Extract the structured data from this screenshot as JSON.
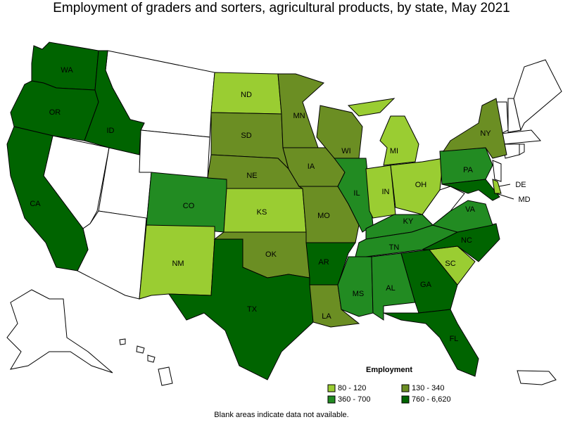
{
  "title": "Employment of graders and sorters, agricultural products, by state, May 2021",
  "legend": {
    "title": "Employment",
    "items": [
      {
        "label": "80 - 120",
        "color": "#9acd32"
      },
      {
        "label": "130 - 340",
        "color": "#6b8e23"
      },
      {
        "label": "360 - 700",
        "color": "#228b22"
      },
      {
        "label": "760 - 6,620",
        "color": "#006400"
      }
    ]
  },
  "states": [
    {
      "label": "WA",
      "color": "#006400"
    },
    {
      "label": "OR",
      "color": "#006400"
    },
    {
      "label": "ID",
      "color": "#006400"
    },
    {
      "label": "CA",
      "color": "#006400"
    },
    {
      "label": "CO",
      "color": "#228b22"
    },
    {
      "label": "NM",
      "color": "#9acd32"
    },
    {
      "label": "ND",
      "color": "#9acd32"
    },
    {
      "label": "SD",
      "color": "#6b8e23"
    },
    {
      "label": "NE",
      "color": "#6b8e23"
    },
    {
      "label": "KS",
      "color": "#9acd32"
    },
    {
      "label": "OK",
      "color": "#6b8e23"
    },
    {
      "label": "TX",
      "color": "#006400"
    },
    {
      "label": "MN",
      "color": "#6b8e23"
    },
    {
      "label": "IA",
      "color": "#6b8e23"
    },
    {
      "label": "MO",
      "color": "#6b8e23"
    },
    {
      "label": "AR",
      "color": "#006400"
    },
    {
      "label": "LA",
      "color": "#6b8e23"
    },
    {
      "label": "WI",
      "color": "#6b8e23"
    },
    {
      "label": "IL",
      "color": "#228b22"
    },
    {
      "label": "MI",
      "color": "#9acd32"
    },
    {
      "label": "IN",
      "color": "#9acd32"
    },
    {
      "label": "OH",
      "color": "#9acd32"
    },
    {
      "label": "KY",
      "color": "#228b22"
    },
    {
      "label": "TN",
      "color": "#228b22"
    },
    {
      "label": "MS",
      "color": "#228b22"
    },
    {
      "label": "AL",
      "color": "#228b22"
    },
    {
      "label": "GA",
      "color": "#006400"
    },
    {
      "label": "FL",
      "color": "#006400"
    },
    {
      "label": "SC",
      "color": "#9acd32"
    },
    {
      "label": "NC",
      "color": "#006400"
    },
    {
      "label": "VA",
      "color": "#228b22"
    },
    {
      "label": "PA",
      "color": "#228b22"
    },
    {
      "label": "NY",
      "color": "#6b8e23"
    },
    {
      "label": "MD",
      "color": "#006400"
    },
    {
      "label": "DE",
      "color": "#9acd32"
    }
  ],
  "footnote": "Blank areas indicate data not available."
}
